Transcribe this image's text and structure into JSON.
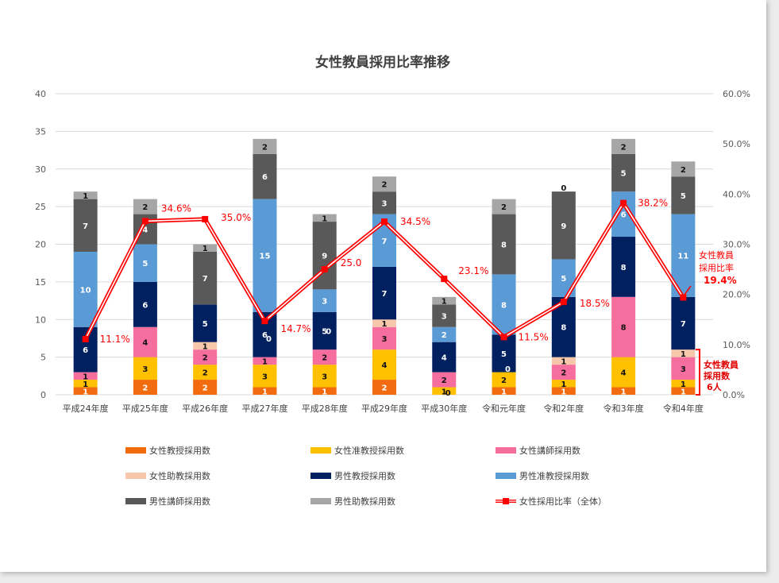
{
  "chart_data": {
    "type": "bar",
    "title": "女性教員採用比率推移",
    "categories": [
      "平成24年度",
      "平成25年度",
      "平成26年度",
      "平成27年度",
      "平成28年度",
      "平成29年度",
      "平成30年度",
      "令和元年度",
      "令和2年度",
      "令和3年度",
      "令和4年度"
    ],
    "ylim": [
      0,
      40
    ],
    "y_ticks": [
      "0",
      "5",
      "10",
      "15",
      "20",
      "25",
      "30",
      "35",
      "40"
    ],
    "y2lim": [
      0,
      60
    ],
    "y2_ticks": [
      "0.0%",
      "10.0%",
      "20.0%",
      "30.0%",
      "40.0%",
      "50.0%",
      "60.0%"
    ],
    "grid": true,
    "legend_position": "bottom",
    "series": [
      {
        "name": "女性教授採用数",
        "color": "#f26b0f",
        "values": [
          1,
          2,
          2,
          1,
          1,
          2,
          0,
          1,
          1,
          1,
          1
        ]
      },
      {
        "name": "女性准教授採用数",
        "color": "#ffc000",
        "values": [
          1,
          3,
          2,
          3,
          3,
          4,
          1,
          2,
          1,
          4,
          1
        ]
      },
      {
        "name": "女性講師採用数",
        "color": "#f56e9e",
        "values": [
          1,
          4,
          2,
          1,
          2,
          3,
          2,
          0,
          2,
          8,
          3
        ]
      },
      {
        "name": "女性助教採用数",
        "color": "#f7c7ac",
        "values": [
          0,
          0,
          1,
          0,
          0,
          1,
          0,
          0,
          1,
          0,
          1
        ]
      },
      {
        "name": "男性教授採用数",
        "color": "#002060",
        "values": [
          6,
          6,
          5,
          6,
          5,
          7,
          4,
          5,
          8,
          8,
          7
        ]
      },
      {
        "name": "男性准教授採用数",
        "color": "#5b9bd5",
        "values": [
          10,
          5,
          0,
          15,
          3,
          7,
          2,
          8,
          5,
          6,
          11
        ]
      },
      {
        "name": "男性講師採用数",
        "color": "#595959",
        "values": [
          7,
          4,
          7,
          6,
          9,
          3,
          3,
          8,
          9,
          5,
          5
        ]
      },
      {
        "name": "男性助教採用数",
        "color": "#a6a6a6",
        "values": [
          1,
          2,
          1,
          2,
          1,
          2,
          1,
          2,
          0,
          2,
          2
        ]
      }
    ],
    "segment_labels": [
      [
        "1",
        "1",
        "1",
        "0",
        "6",
        "10",
        "7",
        "1"
      ],
      [
        "2",
        "3",
        "4",
        "",
        "6",
        "5",
        "4",
        "2"
      ],
      [
        "2",
        "2",
        "2",
        "1",
        "5",
        "",
        "7",
        "1"
      ],
      [
        "1",
        "3",
        "1",
        "",
        "6",
        "15",
        "6",
        "2"
      ],
      [
        "1",
        "3",
        "2",
        "",
        "5",
        "3",
        "9",
        "1"
      ],
      [
        "2",
        "4",
        "3",
        "1",
        "7",
        "7",
        "3",
        "2"
      ],
      [
        "",
        "1",
        "2",
        "0",
        "4",
        "2",
        "3",
        "1"
      ],
      [
        "1",
        "2",
        "0",
        "",
        "5",
        "8",
        "8",
        "2"
      ],
      [
        "1",
        "1",
        "2",
        "1",
        "8",
        "5",
        "9",
        "0"
      ],
      [
        "1",
        "4",
        "8",
        "0",
        "8",
        "6",
        "5",
        "2"
      ],
      [
        "1",
        "1",
        "3",
        "1",
        "7",
        "11",
        "5",
        "2"
      ]
    ],
    "extra_zero_labels": [
      {
        "category": 3,
        "y": 7.5,
        "text": "0"
      },
      {
        "category": 4,
        "y": 8.5,
        "text": "0"
      },
      {
        "category": 6,
        "y": 0.3,
        "text": "0"
      },
      {
        "category": 7,
        "y": 3.5,
        "text": "0"
      }
    ],
    "ratio_series": {
      "name": "女性採用比率（全体）",
      "color": "#ff0000",
      "values": [
        11.1,
        34.6,
        35.0,
        14.7,
        25.0,
        34.5,
        23.1,
        11.5,
        18.5,
        38.2,
        19.4
      ],
      "labels": [
        "11.1%",
        "34.6%",
        "35.0%",
        "14.7%",
        "25.0",
        "34.5%",
        "23.1%",
        "11.5%",
        "18.5%",
        "38.2%",
        "19.4%"
      ]
    },
    "annotations": {
      "ratio_caption": [
        "女性教員",
        "採用比率"
      ],
      "bracket_caption": [
        "女性教員",
        "採用数",
        "6人"
      ]
    }
  }
}
